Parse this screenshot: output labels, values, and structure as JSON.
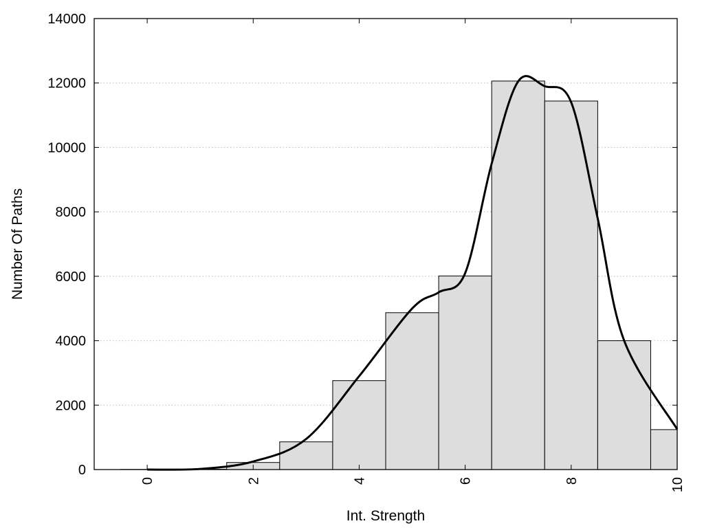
{
  "chart_data": {
    "type": "bar",
    "subtype": "histogram-with-smoothed-curve",
    "title": "",
    "xlabel": "Int. Strength",
    "ylabel": "Number Of Paths",
    "xlim": [
      -1,
      10
    ],
    "ylim": [
      0,
      14000
    ],
    "x_ticks": [
      0,
      2,
      4,
      6,
      8,
      10
    ],
    "y_ticks": [
      0,
      2000,
      4000,
      6000,
      8000,
      10000,
      12000,
      14000
    ],
    "grid": "horizontal dotted",
    "legend": "none",
    "bins": [
      {
        "center": 0,
        "value": 5
      },
      {
        "center": 1,
        "value": 10
      },
      {
        "center": 2,
        "value": 220
      },
      {
        "center": 3,
        "value": 860
      },
      {
        "center": 4,
        "value": 2760
      },
      {
        "center": 5,
        "value": 4870
      },
      {
        "center": 6,
        "value": 6010
      },
      {
        "center": 7,
        "value": 12060
      },
      {
        "center": 8,
        "value": 11440
      },
      {
        "center": 9,
        "value": 4000
      },
      {
        "center": 10,
        "value": 1240
      }
    ],
    "curve": {
      "x": [
        0,
        1,
        2,
        3,
        4,
        5,
        5.5,
        6,
        6.5,
        7,
        7.5,
        8,
        8.5,
        9,
        10
      ],
      "y": [
        0,
        20,
        250,
        950,
        2900,
        5000,
        5500,
        6100,
        9500,
        12050,
        11900,
        11400,
        7800,
        4000,
        1250
      ]
    },
    "colors": {
      "bar_fill": "#dddddd",
      "bar_stroke": "#000000",
      "curve": "#000000",
      "grid": "#bbbbbb"
    }
  }
}
